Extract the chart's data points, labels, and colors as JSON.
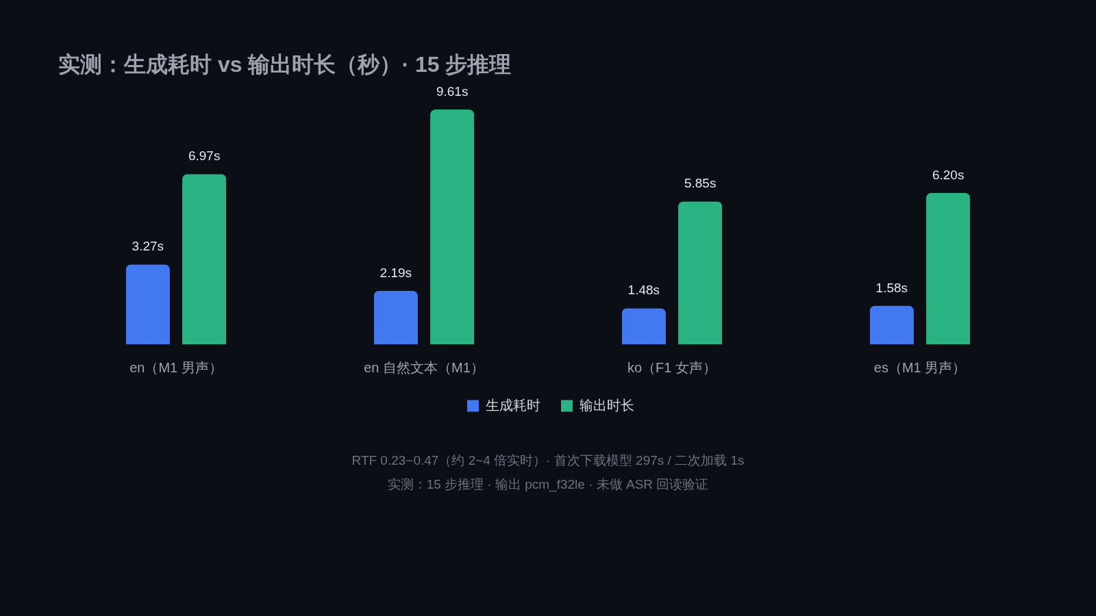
{
  "chart_data": {
    "type": "bar",
    "title": "实测：生成耗时 vs 输出时长（秒）· 15 步推理",
    "categories": [
      "en（M1 男声）",
      "en 自然文本（M1）",
      "ko（F1 女声）",
      "es（M1 男声）"
    ],
    "series": [
      {
        "name": "生成耗时",
        "color": "#4379f0",
        "values": [
          3.27,
          2.19,
          1.48,
          1.58
        ],
        "value_labels": [
          "3.27s",
          "2.19s",
          "1.48s",
          "1.58s"
        ]
      },
      {
        "name": "输出时长",
        "color": "#2bb483",
        "values": [
          6.97,
          9.61,
          5.85,
          6.2
        ],
        "value_labels": [
          "6.97s",
          "9.61s",
          "5.85s",
          "6.20s"
        ]
      }
    ],
    "legend": "bottom",
    "annotations": [
      "RTF 0.23~0.47（约 2~4 倍实时）· 首次下载模型 297s / 二次加载 1s",
      "实测：15 步推理 · 输出 pcm_f32le · 未做 ASR 回读验证"
    ]
  }
}
